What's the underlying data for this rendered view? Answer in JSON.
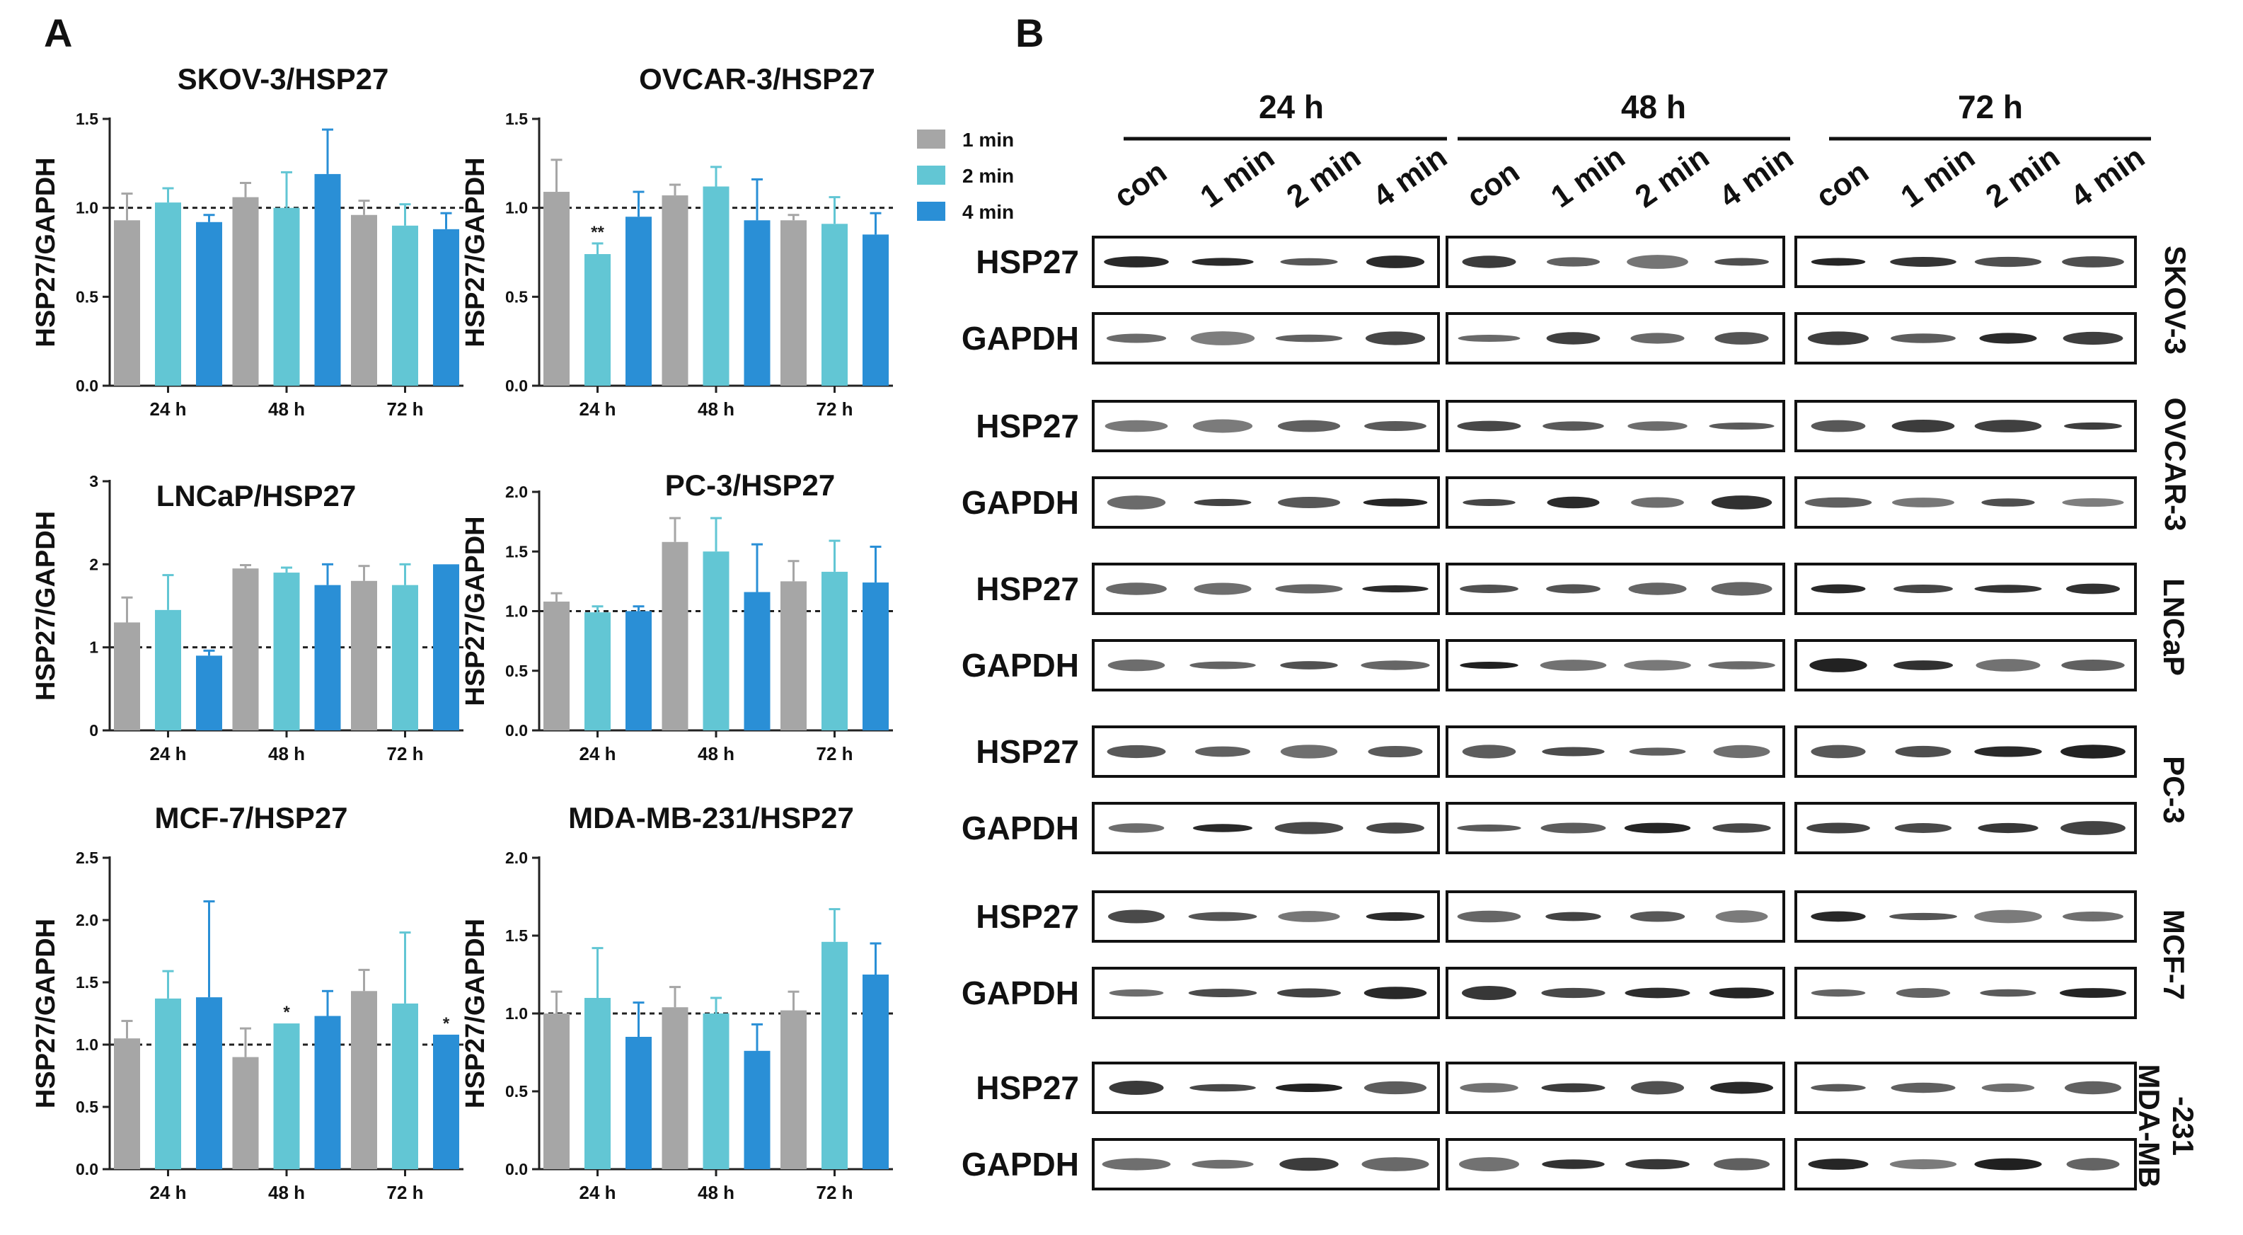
{
  "panel_a_label": "A",
  "panel_b_label": "B",
  "legend": {
    "items": [
      {
        "label": "1 min",
        "color": "#a6a6a6"
      },
      {
        "label": "2 min",
        "color": "#62c6d4"
      },
      {
        "label": "4 min",
        "color": "#2a8fd6"
      }
    ]
  },
  "chart_data": [
    {
      "type": "bar",
      "title": "SKOV-3/HSP27",
      "ylabel": "HSP27/GAPDH",
      "categories": [
        "24 h",
        "48 h",
        "72 h"
      ],
      "ylim": [
        0,
        1.5
      ],
      "yticks": [
        0.0,
        0.5,
        1.0,
        1.5
      ],
      "ytick_labels": [
        "0.0",
        "0.5",
        "1.0",
        "1.5"
      ],
      "reference_line": 1.0,
      "series": [
        {
          "name": "1 min",
          "values": [
            0.93,
            1.06,
            0.96
          ],
          "errors": [
            0.15,
            0.08,
            0.08
          ]
        },
        {
          "name": "2 min",
          "values": [
            1.03,
            1.0,
            0.9
          ],
          "errors": [
            0.08,
            0.2,
            0.12
          ]
        },
        {
          "name": "4 min",
          "values": [
            0.92,
            1.19,
            0.88
          ],
          "errors": [
            0.04,
            0.25,
            0.09
          ]
        }
      ],
      "annotations": []
    },
    {
      "type": "bar",
      "title": "OVCAR-3/HSP27",
      "ylabel": "HSP27/GAPDH",
      "categories": [
        "24 h",
        "48 h",
        "72 h"
      ],
      "ylim": [
        0,
        1.5
      ],
      "yticks": [
        0.0,
        0.5,
        1.0,
        1.5
      ],
      "ytick_labels": [
        "0.0",
        "0.5",
        "1.0",
        "1.5"
      ],
      "reference_line": 1.0,
      "series": [
        {
          "name": "1 min",
          "values": [
            1.09,
            1.07,
            0.93
          ],
          "errors": [
            0.18,
            0.06,
            0.03
          ]
        },
        {
          "name": "2 min",
          "values": [
            0.74,
            1.12,
            0.91
          ],
          "errors": [
            0.06,
            0.11,
            0.15
          ]
        },
        {
          "name": "4 min",
          "values": [
            0.95,
            0.93,
            0.85
          ],
          "errors": [
            0.14,
            0.23,
            0.12
          ]
        }
      ],
      "annotations": [
        {
          "series": 1,
          "category": 0,
          "text": "**"
        }
      ]
    },
    {
      "type": "bar",
      "title": "LNCaP/HSP27",
      "ylabel": "HSP27/GAPDH",
      "categories": [
        "24 h",
        "48 h",
        "72 h"
      ],
      "ylim": [
        0,
        3
      ],
      "yticks": [
        0,
        1,
        2,
        3
      ],
      "ytick_labels": [
        "0",
        "1",
        "2",
        "3"
      ],
      "reference_line": 1.0,
      "series": [
        {
          "name": "1 min",
          "values": [
            1.3,
            1.95,
            1.8
          ],
          "errors": [
            0.3,
            0.04,
            0.18
          ]
        },
        {
          "name": "2 min",
          "values": [
            1.45,
            1.9,
            1.75
          ],
          "errors": [
            0.42,
            0.06,
            0.25
          ]
        },
        {
          "name": "4 min",
          "values": [
            0.9,
            1.75,
            2.0
          ],
          "errors": [
            0.06,
            0.25,
            0.0
          ]
        }
      ],
      "annotations": []
    },
    {
      "type": "bar",
      "title": "PC-3/HSP27",
      "ylabel": "HSP27/GAPDH",
      "categories": [
        "24 h",
        "48 h",
        "72 h"
      ],
      "ylim": [
        0,
        2.0
      ],
      "yticks": [
        0.0,
        0.5,
        1.0,
        1.5,
        2.0
      ],
      "ytick_labels": [
        "0.0",
        "0.5",
        "1.0",
        "1.5",
        "2.0"
      ],
      "reference_line": 1.0,
      "series": [
        {
          "name": "1 min",
          "values": [
            1.08,
            1.58,
            1.25
          ],
          "errors": [
            0.07,
            0.2,
            0.17
          ]
        },
        {
          "name": "2 min",
          "values": [
            0.99,
            1.5,
            1.33
          ],
          "errors": [
            0.05,
            0.28,
            0.26
          ]
        },
        {
          "name": "4 min",
          "values": [
            1.0,
            1.16,
            1.24
          ],
          "errors": [
            0.04,
            0.4,
            0.3
          ]
        }
      ],
      "annotations": []
    },
    {
      "type": "bar",
      "title": "MCF-7/HSP27",
      "ylabel": "HSP27/GAPDH",
      "categories": [
        "24 h",
        "48 h",
        "72 h"
      ],
      "ylim": [
        0,
        2.5
      ],
      "yticks": [
        0.0,
        0.5,
        1.0,
        1.5,
        2.0,
        2.5
      ],
      "ytick_labels": [
        "0.0",
        "0.5",
        "1.0",
        "1.5",
        "2.0",
        "2.5"
      ],
      "reference_line": 1.0,
      "series": [
        {
          "name": "1 min",
          "values": [
            1.05,
            0.9,
            1.43
          ],
          "errors": [
            0.14,
            0.23,
            0.17
          ]
        },
        {
          "name": "2 min",
          "values": [
            1.37,
            1.17,
            1.33
          ],
          "errors": [
            0.22,
            0.0,
            0.57
          ]
        },
        {
          "name": "4 min",
          "values": [
            1.38,
            1.23,
            1.08
          ],
          "errors": [
            0.77,
            0.2,
            0.0
          ]
        }
      ],
      "annotations": [
        {
          "series": 1,
          "category": 1,
          "text": "*"
        },
        {
          "series": 2,
          "category": 2,
          "text": "*"
        }
      ]
    },
    {
      "type": "bar",
      "title": "MDA-MB-231/HSP27",
      "ylabel": "HSP27/GAPDH",
      "categories": [
        "24 h",
        "48 h",
        "72 h"
      ],
      "ylim": [
        0,
        2.0
      ],
      "yticks": [
        0.0,
        0.5,
        1.0,
        1.5,
        2.0
      ],
      "ytick_labels": [
        "0.0",
        "0.5",
        "1.0",
        "1.5",
        "2.0"
      ],
      "reference_line": 1.0,
      "series": [
        {
          "name": "1 min",
          "values": [
            1.0,
            1.04,
            1.02
          ],
          "errors": [
            0.14,
            0.13,
            0.12
          ]
        },
        {
          "name": "2 min",
          "values": [
            1.1,
            1.0,
            1.46
          ],
          "errors": [
            0.32,
            0.1,
            0.21
          ]
        },
        {
          "name": "4 min",
          "values": [
            0.85,
            0.76,
            1.25
          ],
          "errors": [
            0.22,
            0.17,
            0.2
          ]
        }
      ],
      "annotations": []
    }
  ],
  "blot": {
    "time_points": [
      "24 h",
      "48 h",
      "72 h"
    ],
    "lanes": [
      "con",
      "1 min",
      "2 min",
      "4 min"
    ],
    "rows": [
      "HSP27",
      "GAPDH"
    ],
    "cell_lines": [
      "SKOV-3",
      "OVCAR-3",
      "LNCaP",
      "PC-3",
      "MCF-7",
      "MDA-MB -231"
    ]
  }
}
